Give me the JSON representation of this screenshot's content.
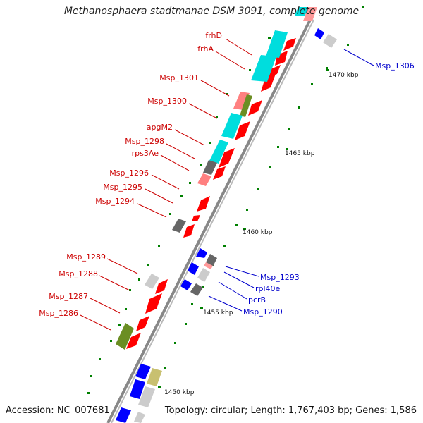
{
  "title": "Methanosphaera stadtmanae DSM 3091, complete genome",
  "accession": "Accession: NC_007681",
  "summary": "Topology: circular; Length: 1,767,403 bp; Genes: 1,586",
  "colors": {
    "red": "#ff0000",
    "cyan": "#00dddd",
    "blue": "#0000ff",
    "pink": "#ff9999",
    "olive": "#6b8e23",
    "khaki": "#c8c070",
    "gray": "#808080",
    "lightgray": "#cccccc",
    "label_left": "#cc0000",
    "label_right": "#0000cc",
    "tick": "#008000"
  },
  "scale_labels": [
    "1470 kbp",
    "1465 kbp",
    "1460 kbp",
    "1455 kbp",
    "1450 kbp"
  ],
  "left_labels": [
    "frhD",
    "frhA",
    "Msp_1301",
    "Msp_1300",
    "apgM2",
    "Msp_1298",
    "rps3Ae",
    "Msp_1296",
    "Msp_1295",
    "Msp_1294",
    "Msp_1289",
    "Msp_1288",
    "Msp_1287",
    "Msp_1286"
  ],
  "right_labels": [
    "Msp_1306",
    "Msp_1293",
    "rpl40e",
    "pcrB",
    "Msp_1290"
  ]
}
